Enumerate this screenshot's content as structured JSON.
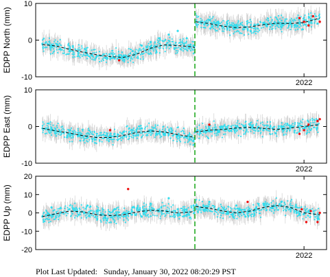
{
  "chart_data": [
    {
      "type": "scatter",
      "ylabel": "EDPP North (mm)",
      "ylim": [
        -10,
        10
      ],
      "yticks": [
        -10,
        0,
        10
      ],
      "x_tick_labels": [
        "2022"
      ],
      "x_tick_values": [
        2022.0
      ],
      "xlim": [
        2016.05,
        2022.5
      ],
      "offset_epoch": 2019.58,
      "series": [
        {
          "color": "#33ddee",
          "x": [
            2016.2,
            2016.4,
            2016.6,
            2016.8,
            2017.0,
            2017.2,
            2017.4,
            2017.6,
            2017.8,
            2018.0,
            2018.2,
            2018.4,
            2018.6,
            2018.8,
            2019.0,
            2019.2,
            2019.4,
            2019.55,
            2019.7,
            2019.9,
            2020.1,
            2020.3,
            2020.5,
            2020.7,
            2020.9,
            2021.1,
            2021.3,
            2021.5,
            2021.7,
            2021.9,
            2022.1,
            2022.3
          ],
          "y": [
            -1.0,
            -1.5,
            -2.5,
            -3.0,
            -3.5,
            -4.0,
            -4.5,
            -4.8,
            -5.0,
            -4.5,
            -3.0,
            -1.5,
            -0.5,
            0.5,
            1.5,
            2.5,
            0.5,
            -1.5,
            5.0,
            5.5,
            5.0,
            4.5,
            4.0,
            3.5,
            4.0,
            4.5,
            4.0,
            3.5,
            4.5,
            4.5,
            5.0,
            4.5
          ]
        },
        {
          "color": "#ee1111",
          "x": [
            2017.9,
            2021.9,
            2022.0,
            2022.1,
            2022.2,
            2022.35
          ],
          "y": [
            -5.5,
            6.0,
            5.0,
            4.0,
            6.5,
            5.0
          ]
        }
      ],
      "model": {
        "x": [
          2016.2,
          2016.5,
          2016.8,
          2017.1,
          2017.4,
          2017.7,
          2018.0,
          2018.3,
          2018.6,
          2018.9,
          2019.2,
          2019.5,
          2019.58,
          2019.6,
          2019.9,
          2020.2,
          2020.5,
          2020.8,
          2021.1,
          2021.4,
          2021.7,
          2022.0,
          2022.35
        ],
        "y": [
          -1.2,
          -1.6,
          -2.5,
          -3.3,
          -4.0,
          -4.5,
          -4.7,
          -3.8,
          -2.2,
          -1.3,
          -1.5,
          -1.8,
          -2.0,
          5.0,
          4.5,
          3.8,
          3.4,
          3.6,
          4.2,
          4.6,
          4.5,
          4.8,
          6.0
        ]
      }
    },
    {
      "type": "scatter",
      "ylabel": "EDPP East (mm)",
      "ylim": [
        -10,
        10
      ],
      "yticks": [
        -10,
        0,
        10
      ],
      "x_tick_labels": [
        "2022"
      ],
      "x_tick_values": [
        2022.0
      ],
      "xlim": [
        2016.05,
        2022.5
      ],
      "offset_epoch": 2019.58,
      "series": [
        {
          "color": "#33ddee",
          "x": [
            2016.2,
            2016.4,
            2016.6,
            2016.8,
            2017.0,
            2017.2,
            2017.4,
            2017.6,
            2017.8,
            2018.0,
            2018.2,
            2018.4,
            2018.6,
            2018.8,
            2019.0,
            2019.2,
            2019.4,
            2019.55,
            2019.7,
            2019.9,
            2020.1,
            2020.3,
            2020.5,
            2020.7,
            2020.9,
            2021.1,
            2021.3,
            2021.5,
            2021.7,
            2021.9,
            2022.1,
            2022.3
          ],
          "y": [
            -0.5,
            -1.0,
            -1.5,
            -2.0,
            -2.5,
            -3.0,
            -3.0,
            -2.5,
            -2.0,
            -1.5,
            -1.0,
            -0.5,
            -1.0,
            -1.5,
            -2.0,
            -2.5,
            -3.0,
            -4.0,
            -1.5,
            -1.0,
            -1.0,
            -0.5,
            0.0,
            0.0,
            -0.5,
            -1.0,
            -0.5,
            0.0,
            0.0,
            -0.5,
            0.5,
            0.5
          ]
        },
        {
          "color": "#ee1111",
          "x": [
            2017.7,
            2019.9,
            2021.9,
            2022.0,
            2022.1,
            2022.3,
            2022.35
          ],
          "y": [
            -1.0,
            0.5,
            -2.0,
            -1.0,
            0.5,
            1.5,
            2.0
          ]
        }
      ],
      "model": {
        "x": [
          2016.2,
          2016.5,
          2016.8,
          2017.1,
          2017.4,
          2017.7,
          2018.0,
          2018.3,
          2018.6,
          2018.9,
          2019.2,
          2019.5,
          2019.58,
          2019.6,
          2019.9,
          2020.2,
          2020.5,
          2020.8,
          2021.1,
          2021.4,
          2021.7,
          2022.0,
          2022.35
        ],
        "y": [
          -0.5,
          -1.2,
          -1.8,
          -2.5,
          -3.0,
          -3.0,
          -2.4,
          -1.6,
          -1.2,
          -1.5,
          -2.2,
          -2.8,
          -3.0,
          -1.5,
          -1.0,
          -0.8,
          -0.4,
          -0.2,
          -0.5,
          -0.8,
          -0.4,
          0.0,
          0.5
        ]
      }
    },
    {
      "type": "scatter",
      "ylabel": "EDPP Up (mm)",
      "ylim": [
        -20,
        20
      ],
      "yticks": [
        -20,
        -10,
        0,
        10,
        20
      ],
      "x_tick_labels": [
        "2022"
      ],
      "x_tick_values": [
        2022.0
      ],
      "xlim": [
        2016.05,
        2022.5
      ],
      "offset_epoch": 2019.58,
      "series": [
        {
          "color": "#33ddee",
          "x": [
            2016.2,
            2016.4,
            2016.6,
            2016.8,
            2017.0,
            2017.2,
            2017.4,
            2017.6,
            2017.8,
            2018.0,
            2018.2,
            2018.4,
            2018.6,
            2018.8,
            2019.0,
            2019.2,
            2019.4,
            2019.55,
            2019.7,
            2019.9,
            2020.1,
            2020.3,
            2020.5,
            2020.7,
            2020.9,
            2021.1,
            2021.3,
            2021.5,
            2021.7,
            2021.9,
            2022.1,
            2022.3
          ],
          "y": [
            -2.0,
            3.0,
            0.0,
            2.0,
            -1.0,
            4.0,
            1.0,
            -3.0,
            2.0,
            0.0,
            3.0,
            -2.0,
            5.0,
            1.0,
            8.0,
            2.0,
            -1.0,
            4.0,
            3.0,
            6.0,
            2.0,
            0.0,
            4.0,
            -2.0,
            1.0,
            5.0,
            3.0,
            6.0,
            2.0,
            -1.0,
            1.0,
            -3.0
          ]
        },
        {
          "color": "#ee1111",
          "x": [
            2018.1,
            2020.75,
            2021.95,
            2022.05,
            2022.15,
            2022.3,
            2022.35
          ],
          "y": [
            13.0,
            6.0,
            2.0,
            -5.0,
            1.0,
            -5.0,
            0.0
          ]
        }
      ],
      "model": {
        "x": [
          2016.2,
          2016.5,
          2016.8,
          2017.1,
          2017.4,
          2017.7,
          2018.0,
          2018.3,
          2018.6,
          2018.9,
          2019.2,
          2019.5,
          2019.58,
          2019.6,
          2019.9,
          2020.2,
          2020.5,
          2020.8,
          2021.1,
          2021.4,
          2021.7,
          2022.0,
          2022.35
        ],
        "y": [
          -2.0,
          -0.5,
          1.0,
          0.5,
          -1.0,
          -1.5,
          -1.0,
          0.5,
          1.5,
          1.0,
          0.0,
          0.5,
          1.0,
          3.5,
          2.5,
          1.0,
          0.0,
          1.0,
          3.0,
          4.0,
          3.0,
          0.0,
          -1.0
        ]
      }
    }
  ],
  "footer": {
    "label": "Plot Last Updated:",
    "timestamp": "Sunday, January 30, 2022 08:20:29 PST"
  },
  "colors": {
    "observations": "#33ddee",
    "outliers": "#ee1111",
    "error_bars": "#c8c8c8",
    "model": "#000000",
    "offset_line": "#22aa22"
  }
}
